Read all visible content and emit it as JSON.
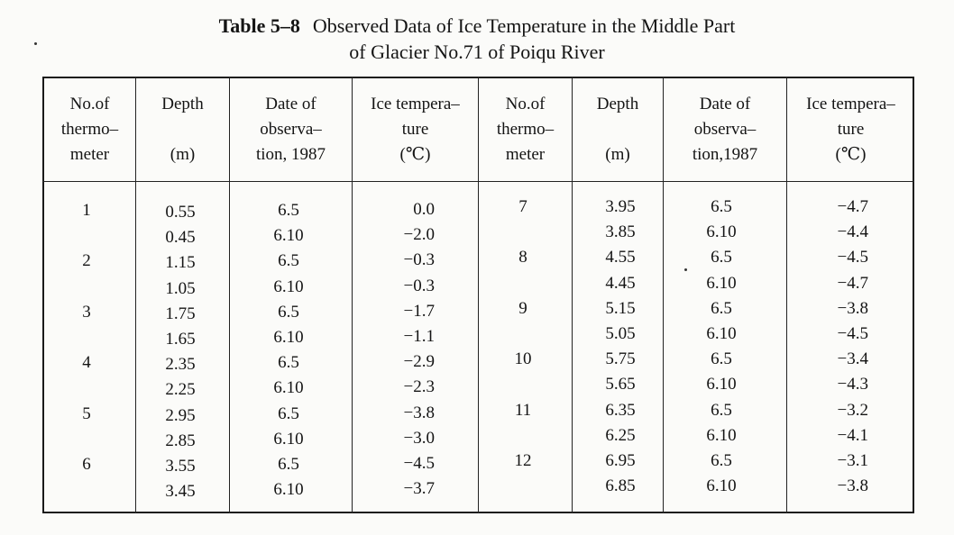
{
  "title": {
    "number": "Table 5–8",
    "line1": "Observed Data of Ice Temperature in the Middle Part",
    "line2": "of Glacier No.71 of Poiqu River"
  },
  "headers": [
    [
      "No.of",
      "thermo–",
      "meter"
    ],
    [
      "Depth",
      "",
      "(m)"
    ],
    [
      "Date of",
      "observa–",
      "tion, 1987"
    ],
    [
      "Ice tempera–",
      "ture",
      "(℃)"
    ],
    [
      "No.of",
      "thermo–",
      "meter"
    ],
    [
      "Depth",
      "",
      "(m)"
    ],
    [
      "Date of",
      "observa–",
      "tion,1987"
    ],
    [
      "Ice tempera–",
      "ture",
      "(℃)"
    ]
  ],
  "left_rows": [
    {
      "no": "1",
      "depth": "0.55",
      "date": "6.5",
      "temp": "0.0"
    },
    {
      "no": "",
      "depth": "0.45",
      "date": "6.10",
      "temp": "−2.0"
    },
    {
      "no": "2",
      "depth": "1.15",
      "date": "6.5",
      "temp": "−0.3"
    },
    {
      "no": "",
      "depth": "1.05",
      "date": "6.10",
      "temp": "−0.3"
    },
    {
      "no": "3",
      "depth": "1.75",
      "date": "6.5",
      "temp": "−1.7"
    },
    {
      "no": "",
      "depth": "1.65",
      "date": "6.10",
      "temp": "−1.1"
    },
    {
      "no": "4",
      "depth": "2.35",
      "date": "6.5",
      "temp": "−2.9"
    },
    {
      "no": "",
      "depth": "2.25",
      "date": "6.10",
      "temp": "−2.3"
    },
    {
      "no": "5",
      "depth": "2.95",
      "date": "6.5",
      "temp": "−3.8"
    },
    {
      "no": "",
      "depth": "2.85",
      "date": "6.10",
      "temp": "−3.0"
    },
    {
      "no": "6",
      "depth": "3.55",
      "date": "6.5",
      "temp": "−4.5"
    },
    {
      "no": "",
      "depth": "3.45",
      "date": "6.10",
      "temp": "−3.7"
    }
  ],
  "right_rows": [
    {
      "no": "7",
      "depth": "3.95",
      "date": "6.5",
      "temp": "−4.7"
    },
    {
      "no": "",
      "depth": "3.85",
      "date": "6.10",
      "temp": "−4.4"
    },
    {
      "no": "8",
      "depth": "4.55",
      "date": "6.5",
      "temp": "−4.5"
    },
    {
      "no": "",
      "depth": "4.45",
      "date": "6.10",
      "temp": "−4.7"
    },
    {
      "no": "9",
      "depth": "5.15",
      "date": "6.5",
      "temp": "−3.8"
    },
    {
      "no": "",
      "depth": "5.05",
      "date": "6.10",
      "temp": "−4.5"
    },
    {
      "no": "10",
      "depth": "5.75",
      "date": "6.5",
      "temp": "−3.4"
    },
    {
      "no": "",
      "depth": "5.65",
      "date": "6.10",
      "temp": "−4.3"
    },
    {
      "no": "11",
      "depth": "6.35",
      "date": "6.5",
      "temp": "−3.2"
    },
    {
      "no": "",
      "depth": "6.25",
      "date": "6.10",
      "temp": "−4.1"
    },
    {
      "no": "12",
      "depth": "6.95",
      "date": "6.5",
      "temp": "−3.1"
    },
    {
      "no": "",
      "depth": "6.85",
      "date": "6.10",
      "temp": "−3.8"
    }
  ]
}
